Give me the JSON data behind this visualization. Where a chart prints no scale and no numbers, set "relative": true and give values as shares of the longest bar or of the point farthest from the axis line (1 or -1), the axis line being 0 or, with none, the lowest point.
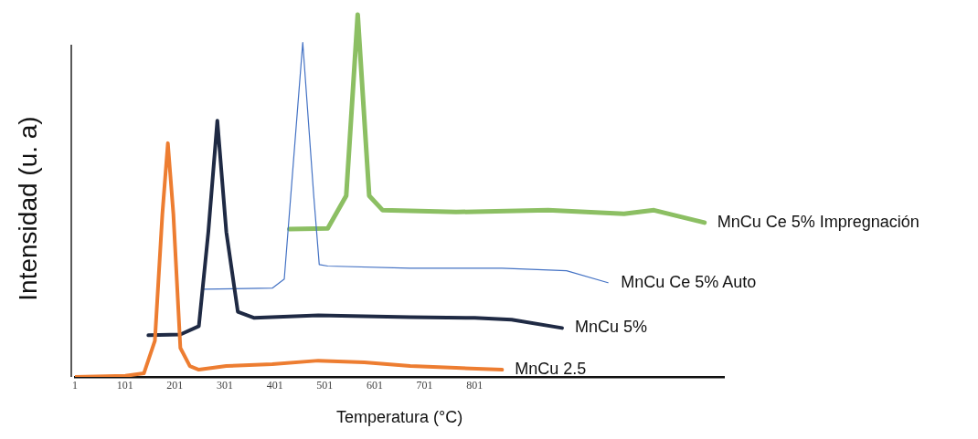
{
  "chart_data": {
    "type": "line",
    "relative": true,
    "xlabel": "Temperatura (°C)",
    "ylabel": "Intensidad (u. a)",
    "xlim": [
      1,
      1300
    ],
    "xticks": [
      1,
      101,
      201,
      301,
      401,
      501,
      601,
      701,
      801
    ],
    "grid": false,
    "legend": false,
    "marker": "none",
    "line_style": "solid",
    "series": [
      {
        "name": "MnCu 2.5",
        "color": "#ed7d31",
        "x": [
          1,
          102,
          139,
          161,
          176,
          187,
          198,
          212,
          231,
          249,
          304,
          396,
          488,
          580,
          672,
          764,
          856
        ],
        "values": [
          0,
          0.003,
          0.01,
          0.1,
          0.45,
          0.645,
          0.45,
          0.08,
          0.03,
          0.02,
          0.03,
          0.035,
          0.045,
          0.04,
          0.03,
          0.025,
          0.02
        ]
      },
      {
        "name": "MnCu 5%",
        "color": "#1f2a44",
        "x": [
          148,
          212,
          249,
          268,
          286,
          304,
          327,
          360,
          488,
          672,
          801,
          875,
          976
        ],
        "values": [
          0.115,
          0.117,
          0.14,
          0.4,
          0.707,
          0.4,
          0.18,
          0.163,
          0.17,
          0.165,
          0.163,
          0.158,
          0.135
        ]
      },
      {
        "name": "MnCu Ce 5% Auto",
        "color": "#4472c4",
        "x": [
          258,
          396,
          420,
          433,
          457,
          479,
          490,
          507,
          672,
          856,
          985,
          1068
        ],
        "values": [
          0.242,
          0.245,
          0.27,
          0.5,
          0.923,
          0.5,
          0.31,
          0.306,
          0.3,
          0.3,
          0.293,
          0.26
        ]
      },
      {
        "name": "MnCu Ce 5% Impregnación",
        "color": "#8cbf63",
        "x": [
          430,
          507,
          544,
          567,
          590,
          617,
          764,
          948,
          1100,
          1160,
          1261
        ],
        "values": [
          0.408,
          0.41,
          0.5,
          1,
          0.5,
          0.46,
          0.455,
          0.46,
          0.45,
          0.46,
          0.426
        ]
      }
    ]
  }
}
